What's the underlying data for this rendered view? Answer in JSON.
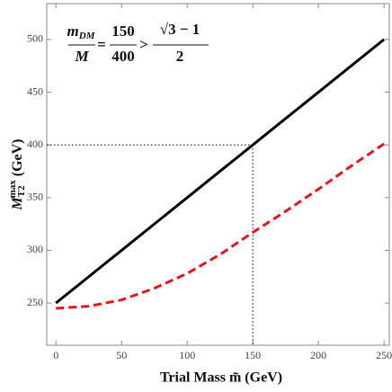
{
  "chart_data": {
    "type": "line",
    "x_label": "Trial Mass m̃ (GeV)",
    "y_label": {
      "main": "M",
      "sub": "T2",
      "sup": "max",
      "unit": "(GeV)"
    },
    "annotation": {
      "num1": "m",
      "num1_sub": "DM",
      "den1": "M",
      "eq": "=",
      "num2": "150",
      "den2": "400",
      "gt": ">",
      "num3_root": "√3",
      "num3_rest": " − 1",
      "den3": "2"
    },
    "x": [
      0,
      25,
      50,
      75,
      100,
      125,
      150,
      175,
      200,
      225,
      250
    ],
    "series": [
      {
        "name": "black",
        "color": "#000000",
        "dash": false,
        "values": [
          250,
          275,
          300,
          325,
          350,
          375,
          400,
          425,
          450,
          475,
          500
        ]
      },
      {
        "name": "red",
        "color": "#e8141a",
        "dash": true,
        "values": [
          245,
          247,
          253,
          264,
          278,
          296,
          317,
          337,
          358,
          380,
          401
        ]
      }
    ],
    "reference": {
      "x": 150,
      "y": 400
    },
    "xlim": [
      -7,
      254
    ],
    "ylim": [
      210,
      534
    ],
    "xticks": [
      0,
      50,
      100,
      150,
      200,
      250
    ],
    "yticks": [
      250,
      300,
      350,
      400,
      450,
      500
    ]
  }
}
